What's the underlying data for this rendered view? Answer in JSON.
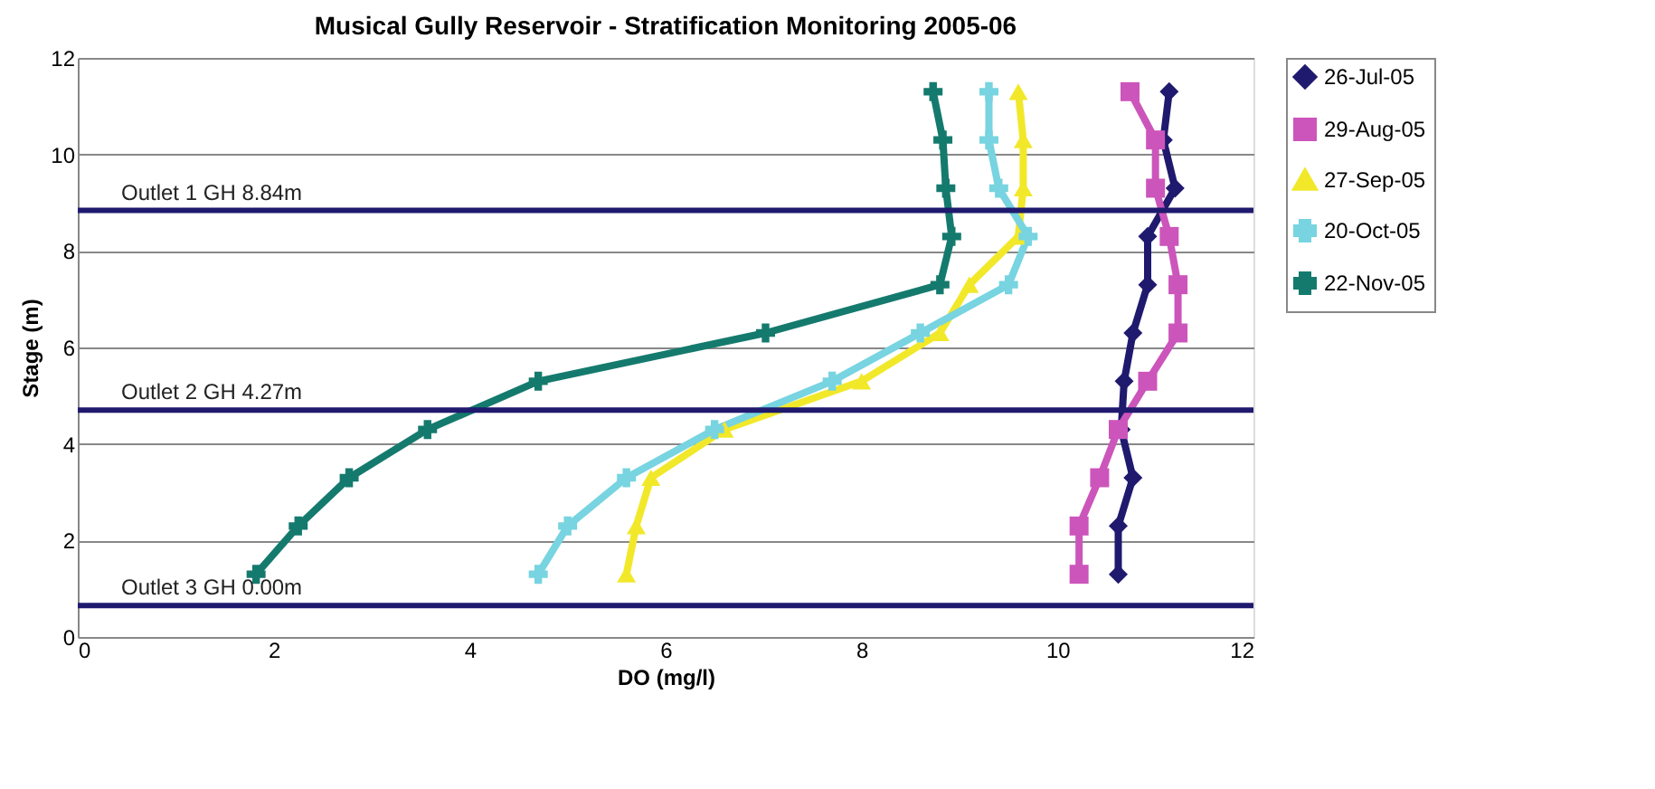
{
  "chart_data": {
    "type": "line",
    "title": "Musical Gully Reservoir - Stratification Monitoring 2005-06",
    "xlabel": "DO (mg/l)",
    "ylabel": "Stage (m)",
    "xlim": [
      0,
      12
    ],
    "xticks": [
      0,
      2,
      4,
      6,
      8,
      10,
      12
    ],
    "ylim": [
      0,
      12
    ],
    "yticks": [
      0,
      2,
      4,
      6,
      8,
      10,
      12
    ],
    "grid": "y",
    "legend": "right",
    "series": [
      {
        "name": "26-Jul-05",
        "color": "#1f1a6e",
        "marker": "diamond",
        "x": [
          10.62,
          10.62,
          10.77,
          10.65,
          10.68,
          10.77,
          10.92,
          10.92,
          11.2,
          11.08,
          11.14
        ],
        "values": [
          1.3,
          2.3,
          3.3,
          4.3,
          5.3,
          6.3,
          7.3,
          8.3,
          9.3,
          10.3,
          11.3
        ]
      },
      {
        "name": "29-Aug-05",
        "color": "#cc55bb",
        "marker": "square",
        "x": [
          10.22,
          10.22,
          10.43,
          10.62,
          10.92,
          11.23,
          11.23,
          11.14,
          11.0,
          11.0,
          10.74
        ],
        "values": [
          1.3,
          2.3,
          3.3,
          4.3,
          5.3,
          6.3,
          7.3,
          8.3,
          9.3,
          10.3,
          11.3
        ]
      },
      {
        "name": "27-Sep-05",
        "color": "#f2e82a",
        "marker": "triangle",
        "x": [
          5.6,
          5.7,
          5.85,
          6.6,
          8.0,
          8.8,
          9.1,
          9.6,
          9.65,
          9.65,
          9.6
        ],
        "values": [
          1.3,
          2.3,
          3.3,
          4.3,
          5.3,
          6.3,
          7.3,
          8.3,
          9.3,
          10.3,
          11.3
        ]
      },
      {
        "name": "20-Oct-05",
        "color": "#77d4e0",
        "marker": "cross",
        "x": [
          4.7,
          5.0,
          5.6,
          6.5,
          7.7,
          8.6,
          9.5,
          9.7,
          9.4,
          9.3,
          9.3
        ],
        "values": [
          1.3,
          2.3,
          3.3,
          4.3,
          5.3,
          6.3,
          7.3,
          8.3,
          9.3,
          10.3,
          11.3
        ]
      },
      {
        "name": "22-Nov-05",
        "color": "#157a6e",
        "marker": "cross",
        "x": [
          1.82,
          2.25,
          2.77,
          3.57,
          4.7,
          7.02,
          8.8,
          8.92,
          8.86,
          8.83,
          8.73
        ],
        "values": [
          1.3,
          2.3,
          3.3,
          4.3,
          5.3,
          6.3,
          7.3,
          8.3,
          9.3,
          10.3,
          11.3
        ]
      }
    ],
    "ref_lines": [
      {
        "axis": "y",
        "value": 8.84,
        "label": "Outlet 1 GH 8.84m",
        "color": "#1f1a6e"
      },
      {
        "axis": "y",
        "value": 4.7,
        "label": "Outlet 2 GH 4.27m",
        "color": "#1f1a6e"
      },
      {
        "axis": "y",
        "value": 0.65,
        "label": "Outlet 3 GH 0.00m",
        "color": "#1f1a6e"
      }
    ]
  }
}
